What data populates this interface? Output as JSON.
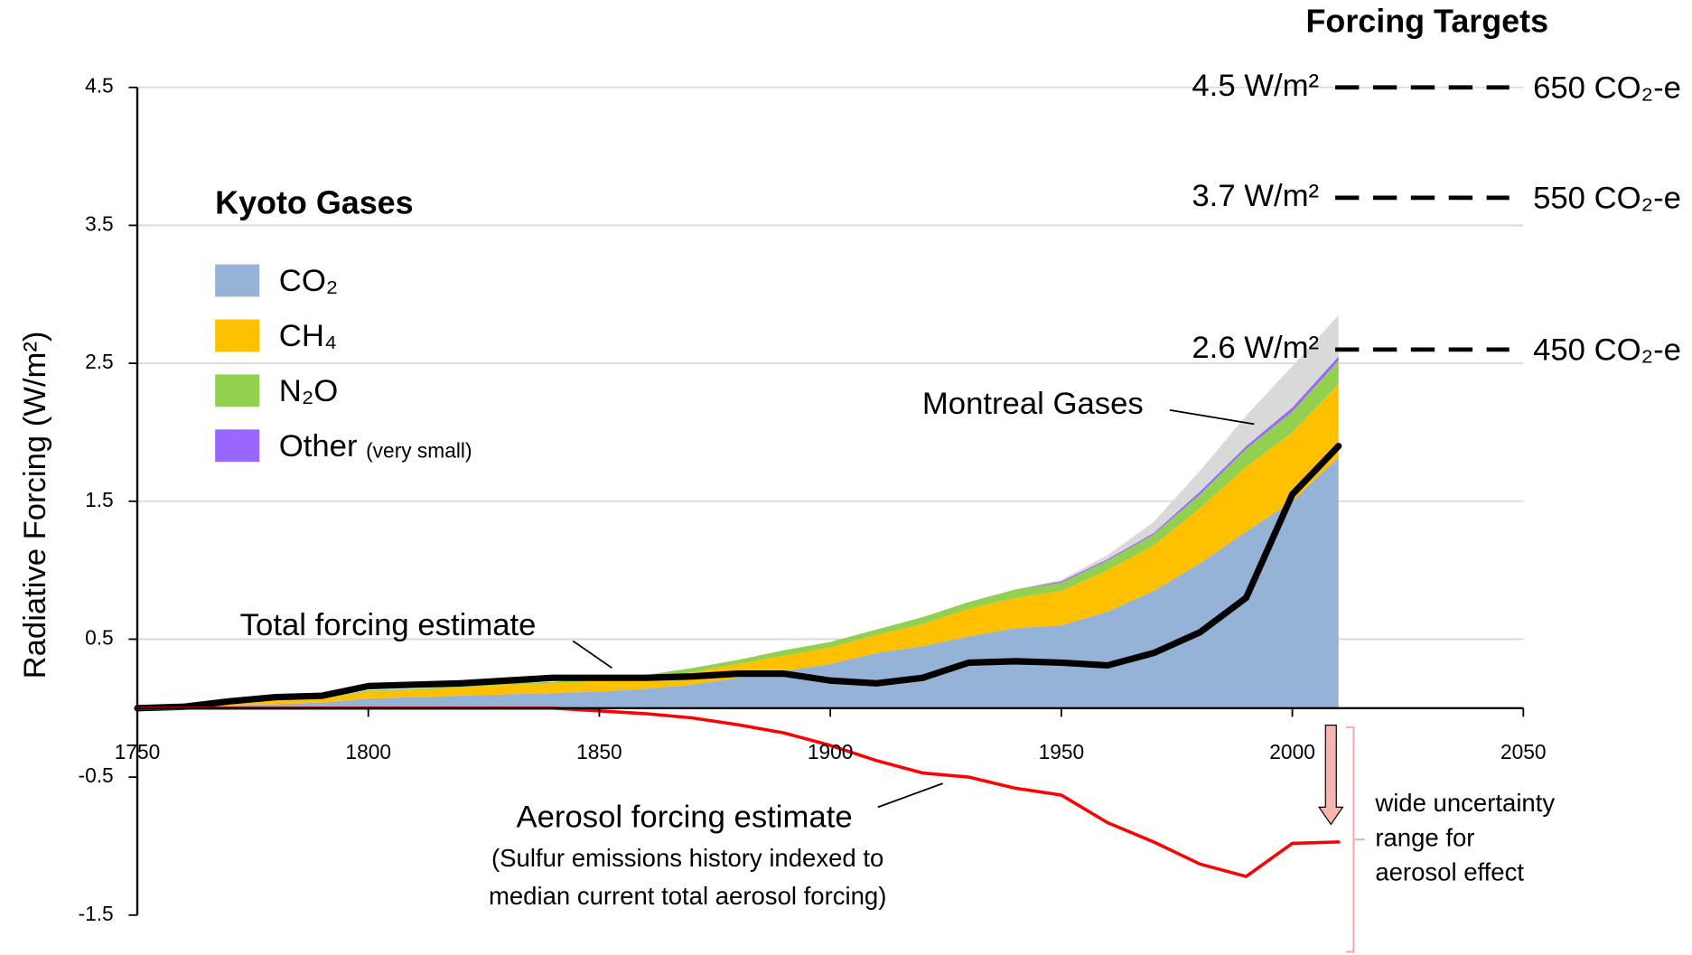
{
  "chart_data": {
    "type": "stacked_area",
    "y_label": "Radiative Forcing (W/m²)",
    "legend_title": "Kyoto Gases",
    "x": [
      1750,
      1760,
      1770,
      1780,
      1790,
      1800,
      1810,
      1820,
      1830,
      1840,
      1850,
      1860,
      1870,
      1880,
      1890,
      1900,
      1910,
      1920,
      1930,
      1940,
      1950,
      1960,
      1970,
      1980,
      1990,
      2000,
      2010
    ],
    "series": [
      {
        "name": "CO₂",
        "color": "#95b3d7",
        "legend": true,
        "values": [
          0,
          0.01,
          0.02,
          0.03,
          0.04,
          0.07,
          0.08,
          0.09,
          0.1,
          0.11,
          0.12,
          0.14,
          0.17,
          0.22,
          0.27,
          0.32,
          0.4,
          0.45,
          0.52,
          0.58,
          0.6,
          0.7,
          0.85,
          1.05,
          1.28,
          1.5,
          1.82
        ]
      },
      {
        "name": "CH₄",
        "color": "#ffc000",
        "legend": true,
        "values": [
          0,
          0.01,
          0.02,
          0.03,
          0.03,
          0.05,
          0.05,
          0.06,
          0.07,
          0.07,
          0.08,
          0.08,
          0.09,
          0.1,
          0.11,
          0.12,
          0.13,
          0.16,
          0.2,
          0.22,
          0.25,
          0.3,
          0.33,
          0.4,
          0.47,
          0.5,
          0.53
        ]
      },
      {
        "name": "N₂O",
        "color": "#92d050",
        "legend": true,
        "values": [
          0,
          0,
          0,
          0,
          0,
          0.01,
          0.01,
          0.01,
          0.01,
          0.01,
          0.02,
          0.02,
          0.03,
          0.03,
          0.04,
          0.04,
          0.04,
          0.05,
          0.05,
          0.06,
          0.06,
          0.07,
          0.08,
          0.1,
          0.13,
          0.15,
          0.17
        ]
      },
      {
        "name": "Other",
        "note": "(very small)",
        "color": "#9966ff",
        "legend": true,
        "values": [
          0,
          0,
          0,
          0,
          0,
          0,
          0,
          0,
          0,
          0,
          0,
          0,
          0,
          0,
          0,
          0,
          0,
          0,
          0,
          0,
          0.01,
          0.01,
          0.01,
          0.02,
          0.02,
          0.03,
          0.03
        ]
      },
      {
        "name": "Montreal Gases",
        "color": "#d9d9d9",
        "legend": false,
        "values": [
          0,
          0,
          0,
          0,
          0,
          0,
          0,
          0,
          0,
          0,
          0,
          0,
          0,
          0,
          0,
          0,
          0,
          0,
          0,
          0,
          0.01,
          0.03,
          0.08,
          0.15,
          0.22,
          0.3,
          0.3
        ]
      }
    ],
    "lines": [
      {
        "name": "Total forcing estimate",
        "color": "#000000",
        "values": [
          0,
          0.01,
          0.05,
          0.08,
          0.09,
          0.16,
          0.17,
          0.18,
          0.2,
          0.22,
          0.22,
          0.22,
          0.23,
          0.25,
          0.25,
          0.2,
          0.18,
          0.22,
          0.33,
          0.34,
          0.33,
          0.31,
          0.4,
          0.55,
          0.8,
          1.55,
          1.9
        ]
      },
      {
        "name": "Aerosol forcing estimate",
        "color": "#ff0000",
        "values": [
          0,
          0,
          0,
          0,
          0,
          0,
          0,
          0,
          0,
          0,
          -0.02,
          -0.04,
          -0.07,
          -0.12,
          -0.18,
          -0.27,
          -0.38,
          -0.47,
          -0.5,
          -0.58,
          -0.63,
          -0.83,
          -0.97,
          -1.13,
          -1.22,
          -0.98,
          -0.97
        ]
      }
    ],
    "aerosol_note": [
      "(Sulfur emissions history indexed to",
      "median current total aerosol forcing)"
    ],
    "uncertainty_note": [
      "wide uncertainty",
      "range for",
      "aerosol effect"
    ],
    "targets_title": "Forcing Targets",
    "targets": [
      {
        "value": 4.5,
        "label": "4.5 W/m²",
        "co2e": "650 CO₂-e"
      },
      {
        "value": 3.7,
        "label": "3.7 W/m²",
        "co2e": "550 CO₂-e"
      },
      {
        "value": 2.6,
        "label": "2.6 W/m²",
        "co2e": "450 CO₂-e"
      }
    ],
    "xlim": [
      1750,
      2050
    ],
    "xticks": [
      1750,
      1800,
      1850,
      1900,
      1950,
      2000,
      2050
    ],
    "ylim": [
      -1.5,
      4.5
    ],
    "yticks": [
      -1.5,
      -0.5,
      0.5,
      1.5,
      2.5,
      3.5,
      4.5
    ],
    "grid": true
  }
}
